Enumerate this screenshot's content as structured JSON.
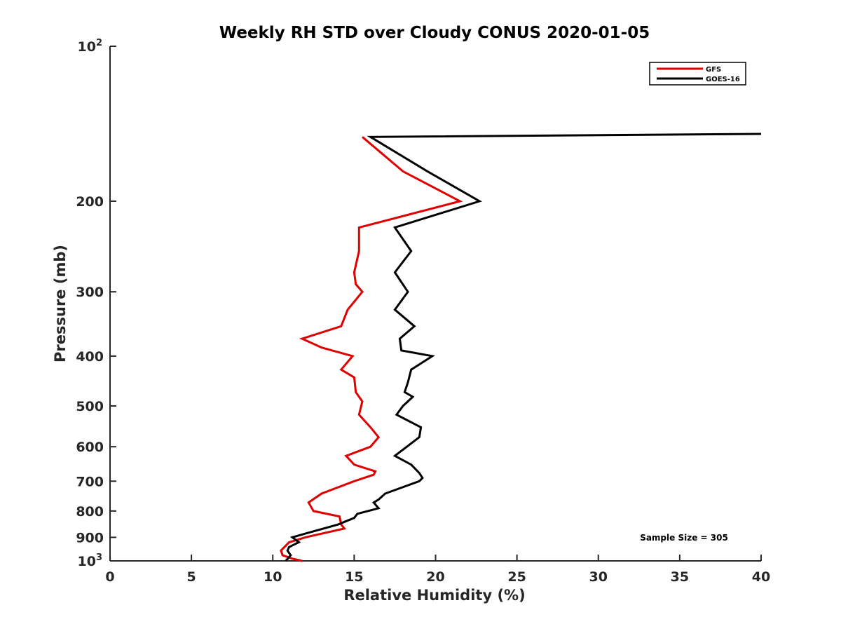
{
  "chart_data": {
    "type": "line",
    "title": "Weekly RH STD over Cloudy CONUS 2020-01-05",
    "xlabel": "Relative Humidity (%)",
    "ylabel": "Pressure (mb)",
    "xlim": [
      0,
      40
    ],
    "ylim": [
      100,
      1000
    ],
    "y_scale": "log",
    "y_reversed": true,
    "grid": false,
    "legend_position": "top-right",
    "x_ticks": [
      "0",
      "5",
      "10",
      "15",
      "20",
      "25",
      "30",
      "35",
      "40"
    ],
    "y_ticks": [
      {
        "value": 100,
        "base": "10",
        "exp": "2"
      },
      {
        "value": 200,
        "label": "200"
      },
      {
        "value": 300,
        "label": "300"
      },
      {
        "value": 400,
        "label": "400"
      },
      {
        "value": 500,
        "label": "500"
      },
      {
        "value": 600,
        "label": "600"
      },
      {
        "value": 700,
        "label": "700"
      },
      {
        "value": 800,
        "label": "800"
      },
      {
        "value": 900,
        "label": "900"
      },
      {
        "value": 1000,
        "base": "10",
        "exp": "3"
      }
    ],
    "annotation": "Sample Size = 305",
    "series": [
      {
        "name": "GFS",
        "color": "#e00000",
        "points": [
          [
            15.5,
            150
          ],
          [
            18.0,
            175
          ],
          [
            21.5,
            200
          ],
          [
            15.3,
            225
          ],
          [
            15.3,
            250
          ],
          [
            15.0,
            275
          ],
          [
            15.1,
            290
          ],
          [
            15.5,
            300
          ],
          [
            14.6,
            325
          ],
          [
            14.2,
            350
          ],
          [
            11.8,
            370
          ],
          [
            13.0,
            385
          ],
          [
            14.9,
            400
          ],
          [
            14.2,
            425
          ],
          [
            15.0,
            440
          ],
          [
            15.1,
            470
          ],
          [
            15.5,
            490
          ],
          [
            15.3,
            520
          ],
          [
            16.0,
            550
          ],
          [
            16.5,
            575
          ],
          [
            16.0,
            600
          ],
          [
            14.5,
            625
          ],
          [
            15.0,
            650
          ],
          [
            16.3,
            670
          ],
          [
            16.2,
            680
          ],
          [
            15.0,
            700
          ],
          [
            13.0,
            740
          ],
          [
            12.2,
            770
          ],
          [
            12.5,
            800
          ],
          [
            14.1,
            820
          ],
          [
            14.2,
            850
          ],
          [
            14.4,
            865
          ],
          [
            12.0,
            900
          ],
          [
            11.0,
            920
          ],
          [
            10.5,
            955
          ],
          [
            10.6,
            975
          ],
          [
            11.2,
            990
          ],
          [
            11.8,
            1000
          ]
        ]
      },
      {
        "name": "GOES-16",
        "color": "#000000",
        "points": [
          [
            40.0,
            148
          ],
          [
            16.0,
            150
          ],
          [
            19.5,
            175
          ],
          [
            22.7,
            200
          ],
          [
            17.5,
            225
          ],
          [
            18.5,
            250
          ],
          [
            17.5,
            275
          ],
          [
            18.3,
            300
          ],
          [
            17.5,
            325
          ],
          [
            18.7,
            350
          ],
          [
            17.8,
            370
          ],
          [
            17.9,
            390
          ],
          [
            19.8,
            400
          ],
          [
            18.5,
            425
          ],
          [
            18.3,
            450
          ],
          [
            18.1,
            470
          ],
          [
            18.6,
            480
          ],
          [
            18.0,
            500
          ],
          [
            17.6,
            520
          ],
          [
            19.1,
            550
          ],
          [
            19.0,
            575
          ],
          [
            17.5,
            625
          ],
          [
            18.5,
            650
          ],
          [
            19.0,
            675
          ],
          [
            19.2,
            690
          ],
          [
            19.0,
            700
          ],
          [
            16.9,
            740
          ],
          [
            16.5,
            760
          ],
          [
            16.2,
            770
          ],
          [
            16.5,
            790
          ],
          [
            15.2,
            810
          ],
          [
            15.0,
            825
          ],
          [
            14.0,
            850
          ],
          [
            12.0,
            885
          ],
          [
            11.2,
            900
          ],
          [
            11.6,
            920
          ],
          [
            11.0,
            940
          ],
          [
            10.9,
            955
          ],
          [
            11.1,
            975
          ],
          [
            10.8,
            1000
          ]
        ]
      }
    ]
  }
}
